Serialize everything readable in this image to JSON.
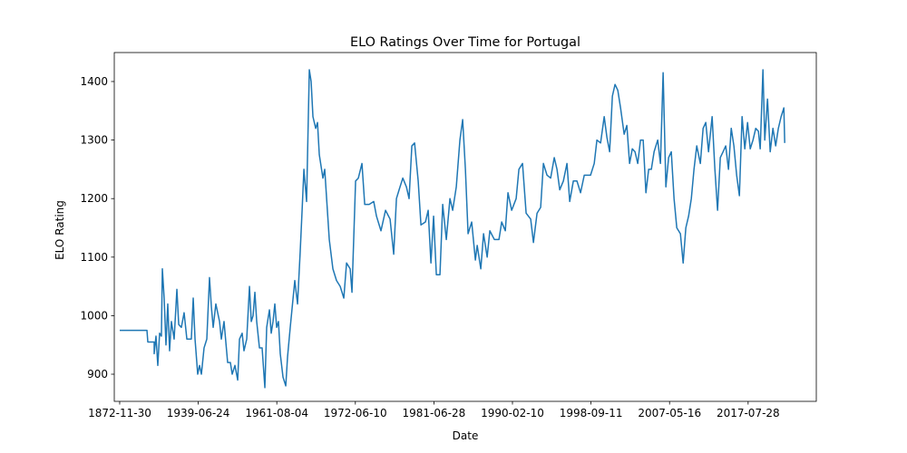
{
  "chart_data": {
    "type": "line",
    "title": "ELO Ratings Over Time for Portugal",
    "x_label": "Date",
    "y_label": "ELO Rating",
    "x": [
      0,
      347,
      358,
      439,
      439,
      462,
      485,
      508,
      531,
      543,
      566,
      589,
      612,
      635,
      658,
      693,
      728,
      751,
      785,
      820,
      855,
      912,
      936,
      959,
      993,
      1016,
      1040,
      1074,
      1109,
      1143,
      1167,
      1190,
      1224,
      1271,
      1294,
      1328,
      1374,
      1409,
      1432,
      1467,
      1502,
      1525,
      1559,
      1582,
      1617,
      1652,
      1675,
      1698,
      1721,
      1744,
      1779,
      1813,
      1848,
      1871,
      1906,
      1929,
      1952,
      1975,
      1998,
      2021,
      2044,
      2079,
      2114,
      2137,
      2171,
      2229,
      2264,
      2298,
      2322,
      2345,
      2379,
      2414,
      2437,
      2460,
      2495,
      2518,
      2541,
      2587,
      2610,
      2668,
      2714,
      2760,
      2807,
      2853,
      2888,
      2934,
      2957,
      3003,
      3038,
      3084,
      3119,
      3176,
      3234,
      3269,
      3326,
      3384,
      3442,
      3488,
      3523,
      3557,
      3604,
      3650,
      3684,
      3719,
      3754,
      3800,
      3835,
      3892,
      3927,
      3962,
      3996,
      4031,
      4077,
      4112,
      4158,
      4204,
      4239,
      4285,
      4331,
      4366,
      4401,
      4435,
      4481,
      4528,
      4551,
      4597,
      4632,
      4678,
      4712,
      4770,
      4828,
      4863,
      4909,
      4943,
      4990,
      5047,
      5082,
      5128,
      5174,
      5232,
      5267,
      5313,
      5359,
      5394,
      5440,
      5486,
      5532,
      5567,
      5602,
      5648,
      5694,
      5729,
      5775,
      5821,
      5867,
      5914,
      5960,
      5994,
      6041,
      6075,
      6122,
      6168,
      6202,
      6237,
      6272,
      6306,
      6341,
      6376,
      6422,
      6456,
      6491,
      6526,
      6560,
      6595,
      6630,
      6664,
      6699,
      6734,
      6768,
      6803,
      6849,
      6884,
      6918,
      6953,
      6988,
      7022,
      7057,
      7092,
      7138,
      7173,
      7207,
      7242,
      7277,
      7311,
      7346,
      7392,
      7427,
      7461,
      7496,
      7542,
      7577,
      7611,
      7646,
      7681,
      7715,
      7750,
      7785,
      7819,
      7854,
      7889,
      7923,
      7958,
      7993,
      8027,
      8062,
      8097,
      8131,
      8154,
      8189,
      8212,
      8247,
      8281,
      8316,
      8351,
      8385,
      8420,
      8455,
      8466
    ],
    "series": [
      {
        "name": "ELO Rating",
        "color": "#1f77b4",
        "values": [
          975,
          975,
          955,
          955,
          935,
          965,
          915,
          970,
          965,
          1080,
          1030,
          950,
          1020,
          940,
          990,
          960,
          1045,
          985,
          980,
          1005,
          960,
          960,
          1030,
          960,
          900,
          915,
          900,
          945,
          960,
          1065,
          1015,
          980,
          1020,
          990,
          960,
          990,
          920,
          920,
          900,
          915,
          890,
          960,
          970,
          940,
          960,
          1050,
          990,
          1000,
          1040,
          990,
          945,
          945,
          877,
          980,
          1010,
          970,
          990,
          1020,
          980,
          990,
          935,
          895,
          880,
          930,
          980,
          1060,
          1020,
          1110,
          1180,
          1250,
          1195,
          1420,
          1400,
          1340,
          1320,
          1330,
          1275,
          1235,
          1250,
          1130,
          1080,
          1060,
          1050,
          1030,
          1090,
          1080,
          1040,
          1230,
          1235,
          1260,
          1190,
          1190,
          1195,
          1170,
          1145,
          1180,
          1165,
          1105,
          1200,
          1215,
          1235,
          1220,
          1200,
          1290,
          1295,
          1230,
          1155,
          1160,
          1180,
          1090,
          1170,
          1070,
          1070,
          1190,
          1130,
          1200,
          1180,
          1220,
          1300,
          1335,
          1250,
          1140,
          1160,
          1095,
          1120,
          1080,
          1140,
          1100,
          1145,
          1130,
          1130,
          1160,
          1145,
          1210,
          1180,
          1200,
          1250,
          1260,
          1175,
          1165,
          1125,
          1175,
          1185,
          1260,
          1240,
          1235,
          1270,
          1250,
          1215,
          1230,
          1260,
          1195,
          1230,
          1230,
          1210,
          1240,
          1240,
          1240,
          1260,
          1300,
          1295,
          1340,
          1305,
          1280,
          1375,
          1395,
          1385,
          1355,
          1310,
          1325,
          1260,
          1285,
          1280,
          1260,
          1300,
          1300,
          1210,
          1250,
          1250,
          1280,
          1300,
          1260,
          1415,
          1220,
          1270,
          1280,
          1200,
          1150,
          1140,
          1090,
          1150,
          1170,
          1200,
          1250,
          1290,
          1260,
          1320,
          1330,
          1280,
          1340,
          1250,
          1180,
          1270,
          1280,
          1290,
          1250,
          1320,
          1290,
          1240,
          1205,
          1340,
          1285,
          1330,
          1285,
          1300,
          1320,
          1315,
          1285,
          1420,
          1300,
          1370,
          1280,
          1320,
          1290,
          1320,
          1340,
          1355,
          1295
        ]
      }
    ],
    "xlim": [
      -69,
      8868
    ],
    "xticks": [
      {
        "value": 0,
        "label": "1872-11-30"
      },
      {
        "value": 1000,
        "label": "1939-06-24"
      },
      {
        "value": 2000,
        "label": "1961-08-04"
      },
      {
        "value": 3000,
        "label": "1972-06-10"
      },
      {
        "value": 4000,
        "label": "1981-06-28"
      },
      {
        "value": 5000,
        "label": "1990-02-10"
      },
      {
        "value": 6000,
        "label": "1998-09-11"
      },
      {
        "value": 7000,
        "label": "2007-05-16"
      },
      {
        "value": 8000,
        "label": "2017-07-28"
      }
    ],
    "ylim": [
      853.6,
      1449.5
    ],
    "yticks": [
      900,
      1000,
      1100,
      1200,
      1300,
      1400
    ],
    "grid": false
  }
}
